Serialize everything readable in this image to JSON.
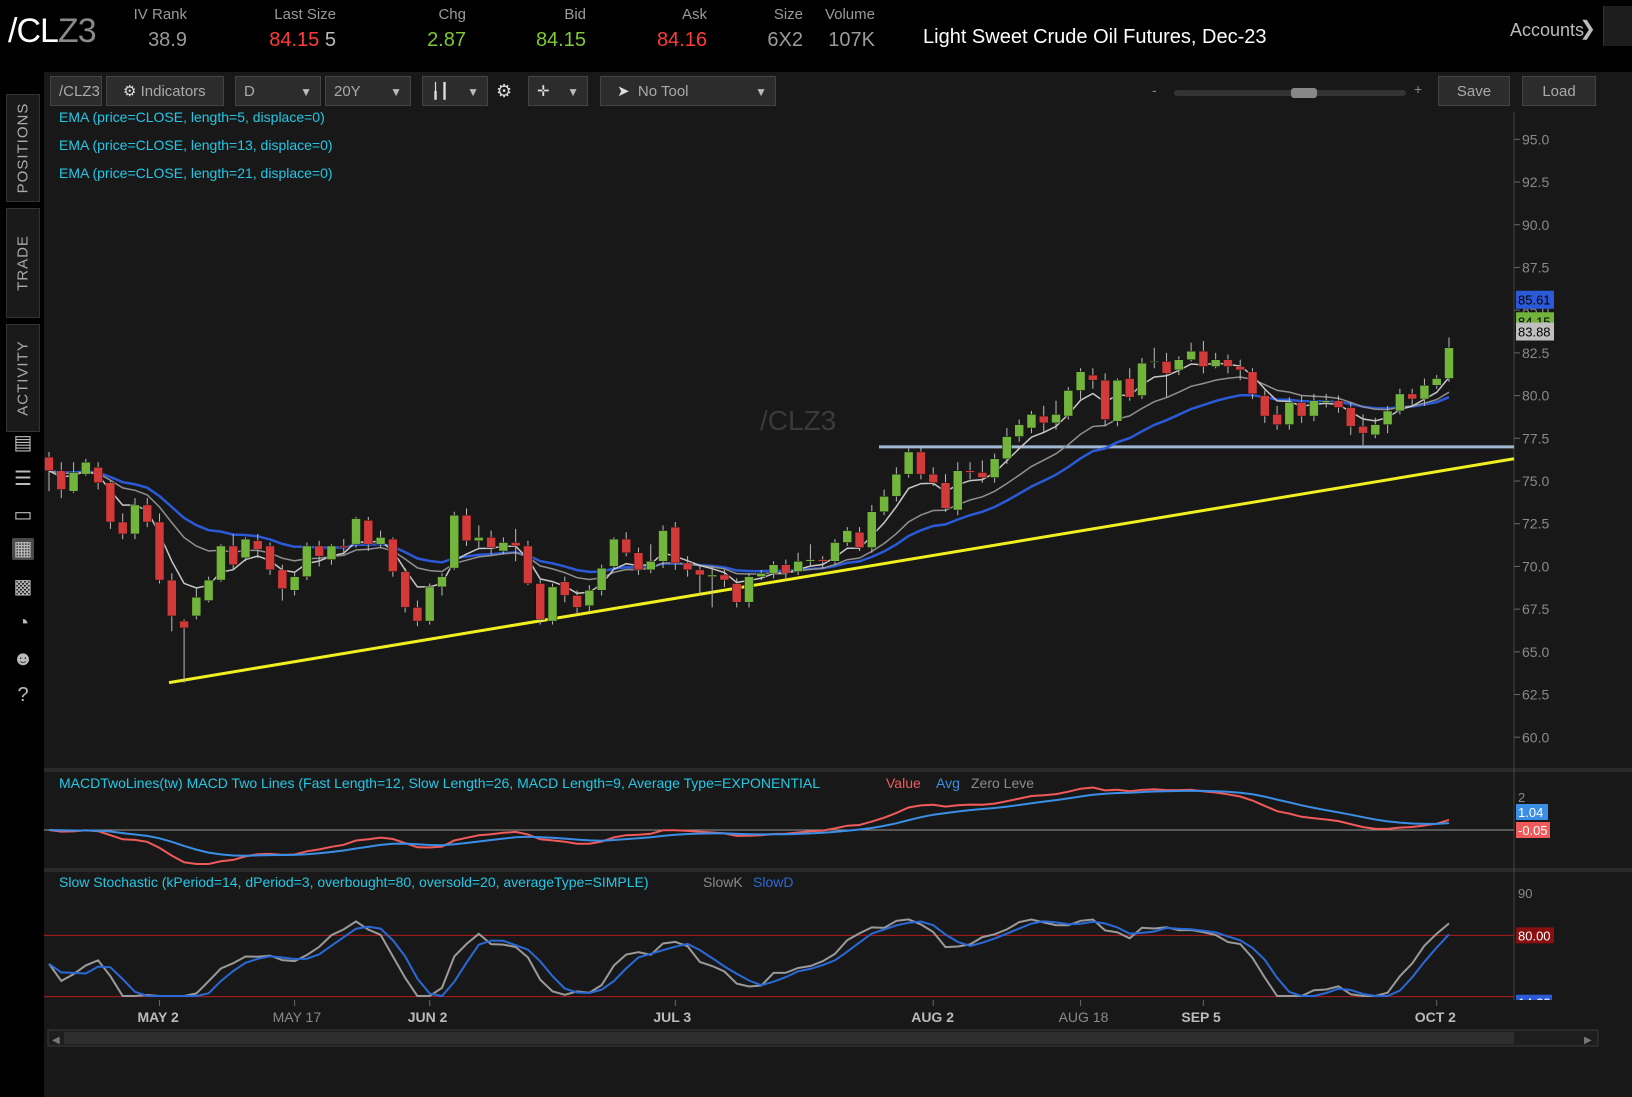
{
  "header": {
    "symbol_prefix": "/CL",
    "symbol_suffix": "Z3",
    "quotes": [
      {
        "label": "IV Rank",
        "value": "38.9",
        "color": "#9a9a9a"
      },
      {
        "label": "Last Size",
        "value": "84.15",
        "value2": "5",
        "color": "#ff3b3b"
      },
      {
        "label": "Chg",
        "value": "2.87",
        "color": "#7ec832"
      },
      {
        "label": "Bid",
        "value": "84.15",
        "color": "#7ec832"
      },
      {
        "label": "Ask",
        "value": "84.16",
        "color": "#ff3b3b"
      },
      {
        "label": "Size",
        "value": "6X2",
        "color": "#9a9a9a"
      },
      {
        "label": "Volume",
        "value": "107K",
        "color": "#9a9a9a"
      }
    ],
    "description": "Light Sweet Crude Oil Futures, Dec-23",
    "accounts_label": "Accounts"
  },
  "sidebar": {
    "tabs": [
      "POSITIONS",
      "TRADE",
      "ACTIVITY"
    ]
  },
  "toolbar": {
    "symbol_field": "/CLZ3",
    "indicators_label": "Indicators",
    "aggregation": "D",
    "timeframe": "20Y",
    "tool_label": "No Tool",
    "zoom_minus": "-",
    "zoom_plus": "+",
    "save_label": "Save",
    "load_label": "Load"
  },
  "colors": {
    "up": "#72b43c",
    "down": "#d23a3a",
    "ema5": "#c8c8c8",
    "ema13": "#909090",
    "ema21": "#2a5ad8",
    "macd_value": "#f05a5a",
    "macd_avg": "#3a8ee6",
    "stoch_k": "#9a9a9a",
    "stoch_d": "#2a6ad8",
    "support": "#9fb7d3",
    "trendline": "#f0f020",
    "study_text": "#23c8e6"
  },
  "chart_data": {
    "type": "candlestick",
    "watermark": "/CLZ3",
    "studies": [
      "EMA (price=CLOSE, length=5, displace=0)",
      "EMA (price=CLOSE, length=13, displace=0)",
      "EMA (price=CLOSE, length=21, displace=0)"
    ],
    "y_axis": {
      "min": 58.2,
      "max": 96.6,
      "ticks": [
        "95.0",
        "92.5",
        "90.0",
        "87.5",
        "85.0",
        "82.5",
        "80.0",
        "77.5",
        "75.0",
        "72.5",
        "70.0",
        "67.5",
        "65.0",
        "62.5",
        "60.0"
      ]
    },
    "price_tags": [
      {
        "value": "85.61",
        "price": 85.61,
        "color": "#2a5ad8"
      },
      {
        "value": "84.15",
        "price": 84.35,
        "color": "#72b43c"
      },
      {
        "value": "83.88",
        "price": 83.75,
        "color": "#bfbfbf"
      }
    ],
    "x_labels": [
      {
        "label": "MAY 2",
        "index": 9,
        "bold": true
      },
      {
        "label": "MAY 17",
        "index": 20,
        "bold": false
      },
      {
        "label": "JUN 2",
        "index": 31,
        "bold": true
      },
      {
        "label": "JUL 3",
        "index": 51,
        "bold": true
      },
      {
        "label": "AUG 2",
        "index": 72,
        "bold": true
      },
      {
        "label": "AUG 18",
        "index": 84,
        "bold": false
      },
      {
        "label": "SEP 5",
        "index": 94,
        "bold": true
      },
      {
        "label": "OCT 2",
        "index": 113,
        "bold": true
      }
    ],
    "candles": [
      [
        76.4,
        75.6,
        76.7,
        74.4
      ],
      [
        75.6,
        74.5,
        76.1,
        74.0
      ],
      [
        74.4,
        75.5,
        76.1,
        74.3
      ],
      [
        75.4,
        76.1,
        76.3,
        75.3
      ],
      [
        75.8,
        74.9,
        76.1,
        74.5
      ],
      [
        74.9,
        72.6,
        75.0,
        72.2
      ],
      [
        72.6,
        71.9,
        73.1,
        71.6
      ],
      [
        71.9,
        73.6,
        74.0,
        71.6
      ],
      [
        73.6,
        72.6,
        74.0,
        72.3
      ],
      [
        72.6,
        69.2,
        73.1,
        69.0
      ],
      [
        69.2,
        67.1,
        69.6,
        66.2
      ],
      [
        66.8,
        66.4,
        66.9,
        63.2
      ],
      [
        67.1,
        68.2,
        68.7,
        66.9
      ],
      [
        68.0,
        69.2,
        69.4,
        67.9
      ],
      [
        69.2,
        71.2,
        71.3,
        69.1
      ],
      [
        71.2,
        70.1,
        71.9,
        69.8
      ],
      [
        70.5,
        71.6,
        71.7,
        70.3
      ],
      [
        71.5,
        71.0,
        71.9,
        70.5
      ],
      [
        71.2,
        69.8,
        71.4,
        69.5
      ],
      [
        69.8,
        68.7,
        70.1,
        68.0
      ],
      [
        68.6,
        69.4,
        69.7,
        68.3
      ],
      [
        69.4,
        71.2,
        71.4,
        69.2
      ],
      [
        71.2,
        70.6,
        71.5,
        70.0
      ],
      [
        70.4,
        71.2,
        71.3,
        70.1
      ],
      [
        71.2,
        71.1,
        71.6,
        70.7
      ],
      [
        71.3,
        72.8,
        72.9,
        71.1
      ],
      [
        72.7,
        71.3,
        72.9,
        70.9
      ],
      [
        71.3,
        71.7,
        72.1,
        71.1
      ],
      [
        71.6,
        69.7,
        71.7,
        69.4
      ],
      [
        69.7,
        67.6,
        69.9,
        67.3
      ],
      [
        67.6,
        66.8,
        68.0,
        66.5
      ],
      [
        66.8,
        68.8,
        69.0,
        66.6
      ],
      [
        68.8,
        69.4,
        69.6,
        68.3
      ],
      [
        69.9,
        73.0,
        73.2,
        69.8
      ],
      [
        73.0,
        71.5,
        73.4,
        71.2
      ],
      [
        71.5,
        71.7,
        72.4,
        71.1
      ],
      [
        71.7,
        71.1,
        72.1,
        70.7
      ],
      [
        70.9,
        71.4,
        71.7,
        70.7
      ],
      [
        71.4,
        71.2,
        72.2,
        70.3
      ],
      [
        71.2,
        69.0,
        71.5,
        68.9
      ],
      [
        69.0,
        66.9,
        69.2,
        66.6
      ],
      [
        66.8,
        68.8,
        69.0,
        66.6
      ],
      [
        69.1,
        68.3,
        69.4,
        67.9
      ],
      [
        68.3,
        67.6,
        68.6,
        67.2
      ],
      [
        67.7,
        68.6,
        68.9,
        67.3
      ],
      [
        68.6,
        69.9,
        70.1,
        68.3
      ],
      [
        70.0,
        71.6,
        71.7,
        69.8
      ],
      [
        71.6,
        70.8,
        72.0,
        70.6
      ],
      [
        70.8,
        69.8,
        71.1,
        69.5
      ],
      [
        69.8,
        70.3,
        71.3,
        69.6
      ],
      [
        70.3,
        72.1,
        72.4,
        69.9
      ],
      [
        72.3,
        70.2,
        72.6,
        69.8
      ],
      [
        70.2,
        69.8,
        70.6,
        69.4
      ],
      [
        69.8,
        69.5,
        70.1,
        68.3
      ],
      [
        69.4,
        69.5,
        70.0,
        67.6
      ],
      [
        69.5,
        69.2,
        69.8,
        68.8
      ],
      [
        69.0,
        67.9,
        69.3,
        67.6
      ],
      [
        67.9,
        69.4,
        69.6,
        67.6
      ],
      [
        69.4,
        69.6,
        69.8,
        69.2
      ],
      [
        69.6,
        70.1,
        70.3,
        69.3
      ],
      [
        70.1,
        69.6,
        70.4,
        69.3
      ],
      [
        69.7,
        70.3,
        70.8,
        69.5
      ],
      [
        70.3,
        70.4,
        71.3,
        70.0
      ],
      [
        70.4,
        70.3,
        70.6,
        69.9
      ],
      [
        70.3,
        71.4,
        71.6,
        70.1
      ],
      [
        71.4,
        72.1,
        72.3,
        71.2
      ],
      [
        72.0,
        71.1,
        72.3,
        70.9
      ],
      [
        71.1,
        73.2,
        73.6,
        70.8
      ],
      [
        73.2,
        74.1,
        74.5,
        73.0
      ],
      [
        74.1,
        75.4,
        75.8,
        73.8
      ],
      [
        75.4,
        76.7,
        76.9,
        75.2
      ],
      [
        76.7,
        75.4,
        77.0,
        75.1
      ],
      [
        75.4,
        74.9,
        75.8,
        74.7
      ],
      [
        74.9,
        73.4,
        75.4,
        73.2
      ],
      [
        73.3,
        75.6,
        76.1,
        73.0
      ],
      [
        75.6,
        75.5,
        76.1,
        75.1
      ],
      [
        75.5,
        75.2,
        76.2,
        74.9
      ],
      [
        75.2,
        76.3,
        76.6,
        74.9
      ],
      [
        76.3,
        77.6,
        78.1,
        76.0
      ],
      [
        77.6,
        78.3,
        78.6,
        77.3
      ],
      [
        78.1,
        78.9,
        79.1,
        77.8
      ],
      [
        78.8,
        78.4,
        79.4,
        77.9
      ],
      [
        78.4,
        78.9,
        79.7,
        78.0
      ],
      [
        78.8,
        80.3,
        80.5,
        78.6
      ],
      [
        80.3,
        81.4,
        81.6,
        79.8
      ],
      [
        81.2,
        80.9,
        81.6,
        80.4
      ],
      [
        80.9,
        78.6,
        81.3,
        78.2
      ],
      [
        78.5,
        80.9,
        81.0,
        78.2
      ],
      [
        81.0,
        79.9,
        81.6,
        79.7
      ],
      [
        80.0,
        81.9,
        82.2,
        79.8
      ],
      [
        82.0,
        82.0,
        82.8,
        81.6
      ],
      [
        82.0,
        81.3,
        82.5,
        79.9
      ],
      [
        81.5,
        82.1,
        82.3,
        81.2
      ],
      [
        82.1,
        82.6,
        83.1,
        82.0
      ],
      [
        82.6,
        81.7,
        83.2,
        81.3
      ],
      [
        81.7,
        82.1,
        82.5,
        81.6
      ],
      [
        82.1,
        81.7,
        82.4,
        81.3
      ],
      [
        81.7,
        81.5,
        82.1,
        80.9
      ],
      [
        81.4,
        80.1,
        81.6,
        79.8
      ],
      [
        80.0,
        78.8,
        80.3,
        78.4
      ],
      [
        78.9,
        78.3,
        79.4,
        78.0
      ],
      [
        78.3,
        79.6,
        79.9,
        78.0
      ],
      [
        79.6,
        78.8,
        80.0,
        78.4
      ],
      [
        78.8,
        79.7,
        80.1,
        78.5
      ],
      [
        79.6,
        79.7,
        80.1,
        79.3
      ],
      [
        79.7,
        79.3,
        80.0,
        79.0
      ],
      [
        79.3,
        78.2,
        79.6,
        77.7
      ],
      [
        78.2,
        77.8,
        78.9,
        77.1
      ],
      [
        77.7,
        78.3,
        78.7,
        77.5
      ],
      [
        78.3,
        79.1,
        79.4,
        77.8
      ],
      [
        79.1,
        80.1,
        80.4,
        78.9
      ],
      [
        80.1,
        79.8,
        80.4,
        79.4
      ],
      [
        79.8,
        80.6,
        81.0,
        79.4
      ],
      [
        80.6,
        81.0,
        81.2,
        80.4
      ],
      [
        81.0,
        82.8,
        83.4,
        80.8
      ]
    ]
  }
}
